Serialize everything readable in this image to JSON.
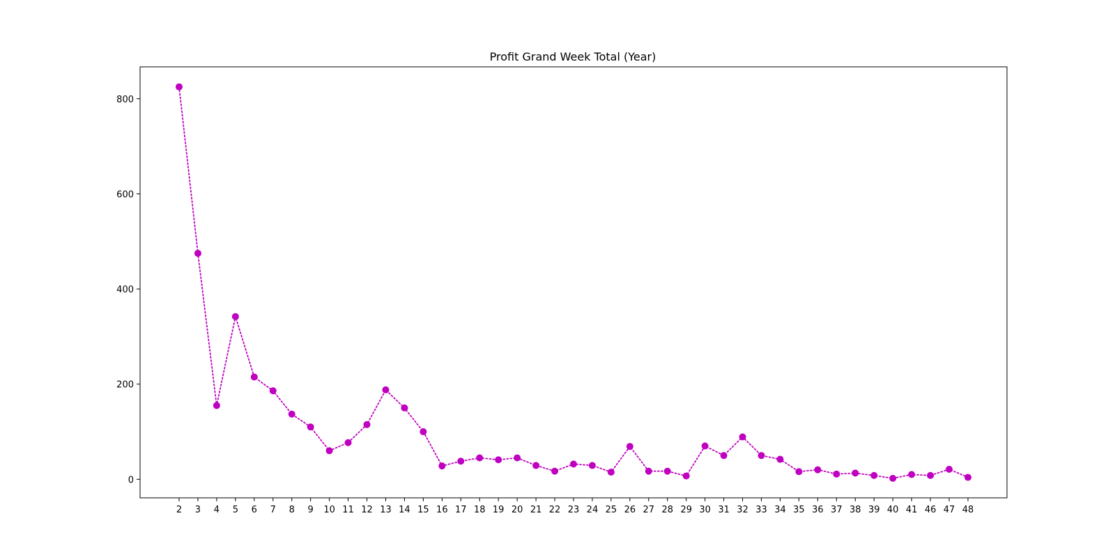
{
  "chart_data": {
    "type": "line",
    "title": "Profit Grand Week Total (Year)",
    "xlabel": "",
    "ylabel": "",
    "categories": [
      "2",
      "3",
      "4",
      "5",
      "6",
      "7",
      "8",
      "9",
      "10",
      "11",
      "12",
      "13",
      "14",
      "15",
      "16",
      "17",
      "18",
      "19",
      "20",
      "21",
      "22",
      "23",
      "24",
      "25",
      "26",
      "27",
      "28",
      "29",
      "30",
      "31",
      "32",
      "33",
      "34",
      "35",
      "36",
      "37",
      "38",
      "39",
      "40",
      "41",
      "46",
      "47",
      "48"
    ],
    "series": [
      {
        "values": [
          825,
          475,
          155,
          342,
          215,
          186,
          137,
          110,
          60,
          77,
          115,
          188,
          150,
          100,
          28,
          38,
          45,
          41,
          45,
          29,
          17,
          32,
          29,
          15,
          69,
          17,
          17,
          7,
          70,
          50,
          89,
          50,
          42,
          16,
          20,
          11,
          13,
          8,
          2,
          10,
          8,
          21,
          4
        ],
        "color": "#c000c0",
        "marker": "circle",
        "linestyle": "dotted"
      }
    ],
    "ylim": [
      -39,
      867
    ],
    "yticks": [
      0,
      200,
      400,
      600,
      800
    ],
    "grid": false,
    "legend": "none"
  }
}
